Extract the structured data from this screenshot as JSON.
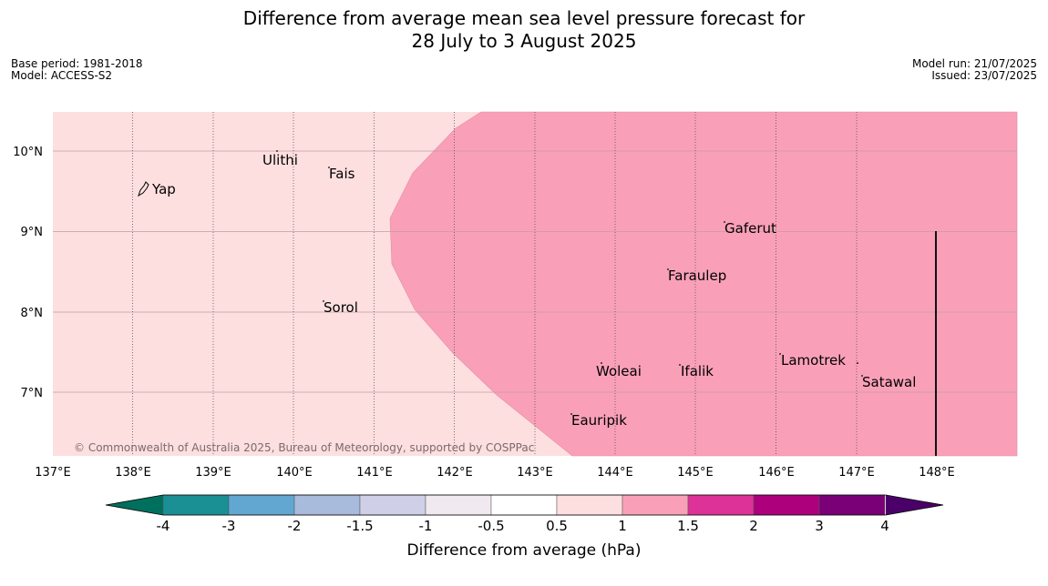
{
  "title_line1": "Difference from average mean sea level pressure forecast for",
  "title_line2": "28 July to 3 August 2025",
  "base_period": "Base period: 1981-2018",
  "model": "Model: ACCESS-S2",
  "model_run": "Model run: 21/07/2025",
  "issued": "Issued: 23/07/2025",
  "copyright": "© Commonwealth of Australia 2025, Bureau of Meteorology, supported by COSPPac",
  "lon_ticks": [
    "137°E",
    "138°E",
    "139°E",
    "140°E",
    "141°E",
    "142°E",
    "143°E",
    "144°E",
    "145°E",
    "146°E",
    "147°E",
    "148°E"
  ],
  "lat_ticks": [
    "10°N",
    "9°N",
    "8°N",
    "7°N"
  ],
  "places": [
    {
      "name": "Yap"
    },
    {
      "name": "Ulithi"
    },
    {
      "name": "Fais"
    },
    {
      "name": "Gaferut"
    },
    {
      "name": "Faraulep"
    },
    {
      "name": "Sorol"
    },
    {
      "name": "Lamotrek"
    },
    {
      "name": "Woleai"
    },
    {
      "name": "Ifalik"
    },
    {
      "name": "Satawal"
    },
    {
      "name": "Eauripik"
    }
  ],
  "colorbar": {
    "label": "Difference from average (hPa)",
    "ticks": [
      "-4",
      "-3",
      "-2",
      "-1.5",
      "-1",
      "-0.5",
      "0.5",
      "1",
      "1.5",
      "2",
      "3",
      "4"
    ],
    "colors": {
      "under": "#00705e",
      "bins": [
        "#1a8f94",
        "#62a7d1",
        "#a8bbdd",
        "#cfd0e8",
        "#f0eaf0",
        "#ffffff",
        "#fddfdf",
        "#f9a0b8",
        "#dd3398",
        "#ad007d",
        "#7a0077"
      ],
      "over": "#4a0068"
    }
  },
  "map_colors": {
    "low_zone": "#fddfdf",
    "high_zone": "#f9a0b8"
  }
}
